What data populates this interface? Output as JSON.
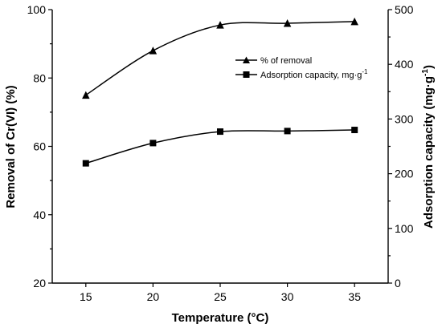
{
  "chart_data": {
    "type": "line",
    "title": "",
    "xlabel": "Temperature (°C)",
    "ylabel_left": "Removal of Cr(VI) (%)",
    "ylabel_right_main": "Adsorption capacity (mg·g",
    "ylabel_right_sup": "-1",
    "ylabel_right_tail": ")",
    "x": [
      15,
      20,
      25,
      30,
      35
    ],
    "xlim": [
      12.5,
      37.5
    ],
    "xticks": [
      "15",
      "20",
      "25",
      "30",
      "35"
    ],
    "ylim_left": [
      20,
      100
    ],
    "yticks_left": [
      "20",
      "40",
      "60",
      "80",
      "100"
    ],
    "ylim_right": [
      0,
      500
    ],
    "yticks_right": [
      "0",
      "100",
      "200",
      "300",
      "400",
      "500"
    ],
    "grid": false,
    "legend_position": "top-right",
    "series": [
      {
        "name": "% of removal",
        "axis": "left",
        "marker": "triangle",
        "values": [
          75,
          88,
          95.5,
          96,
          96.5
        ]
      },
      {
        "name_main": "Adsorption capacity, mg·g",
        "name_sup": "-1",
        "axis": "right",
        "marker": "square",
        "values": [
          219,
          256,
          277,
          278,
          280
        ]
      }
    ]
  }
}
